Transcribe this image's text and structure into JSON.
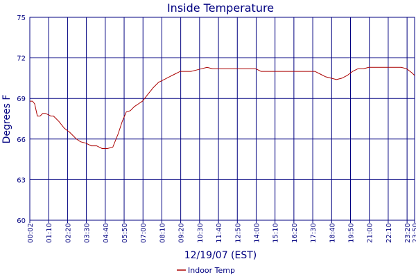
{
  "chart_data": {
    "type": "line",
    "title": "Inside Temperature",
    "xlabel": "12/19/07 (EST)",
    "ylabel": "Degrees F",
    "ylim": [
      60,
      75
    ],
    "yticks": [
      "75",
      "72",
      "69",
      "66",
      "63",
      "60"
    ],
    "xticks": [
      "00:02",
      "01:10",
      "02:20",
      "03:30",
      "04:40",
      "05:50",
      "07:00",
      "08:10",
      "09:20",
      "10:30",
      "11:40",
      "12:50",
      "14:00",
      "15:10",
      "16:20",
      "17:30",
      "18:40",
      "19:50",
      "21:00",
      "22:10",
      "23:20",
      "23:50"
    ],
    "grid": true,
    "legend_position": "bottom",
    "colors": {
      "line": "#aa0000",
      "grid": "#000080",
      "text": "#000080"
    },
    "series": [
      {
        "name": "Indoor Temp",
        "x_unit": "minutes after 00:00",
        "x": [
          2,
          12,
          20,
          30,
          40,
          50,
          60,
          70,
          80,
          90,
          100,
          110,
          130,
          150,
          165,
          175,
          190,
          210,
          230,
          250,
          270,
          290,
          310,
          330,
          345,
          360,
          375,
          390,
          405,
          420,
          440,
          460,
          480,
          500,
          520,
          540,
          560,
          580,
          600,
          620,
          640,
          660,
          680,
          700,
          720,
          740,
          760,
          780,
          800,
          820,
          840,
          860,
          880,
          900,
          920,
          940,
          960,
          980,
          1000,
          1020,
          1040,
          1060,
          1080,
          1100,
          1120,
          1140,
          1160,
          1180,
          1200,
          1220,
          1240,
          1260,
          1280,
          1300,
          1320,
          1340,
          1360,
          1380,
          1400,
          1420,
          1430
        ],
        "values": [
          68.8,
          68.8,
          68.6,
          67.7,
          67.7,
          67.9,
          67.9,
          67.8,
          67.7,
          67.7,
          67.5,
          67.3,
          66.8,
          66.5,
          66.2,
          66.0,
          65.8,
          65.7,
          65.5,
          65.5,
          65.3,
          65.3,
          65.4,
          66.4,
          67.3,
          68.0,
          68.1,
          68.4,
          68.6,
          68.8,
          69.3,
          69.8,
          70.2,
          70.4,
          70.6,
          70.8,
          71.0,
          71.0,
          71.0,
          71.1,
          71.2,
          71.3,
          71.2,
          71.2,
          71.2,
          71.2,
          71.2,
          71.2,
          71.2,
          71.2,
          71.2,
          71.0,
          71.0,
          71.0,
          71.0,
          71.0,
          71.0,
          71.0,
          71.0,
          71.0,
          71.0,
          71.0,
          70.8,
          70.6,
          70.5,
          70.4,
          70.5,
          70.7,
          71.0,
          71.2,
          71.2,
          71.3,
          71.3,
          71.3,
          71.3,
          71.3,
          71.3,
          71.3,
          71.2,
          70.9,
          70.7
        ]
      }
    ]
  }
}
